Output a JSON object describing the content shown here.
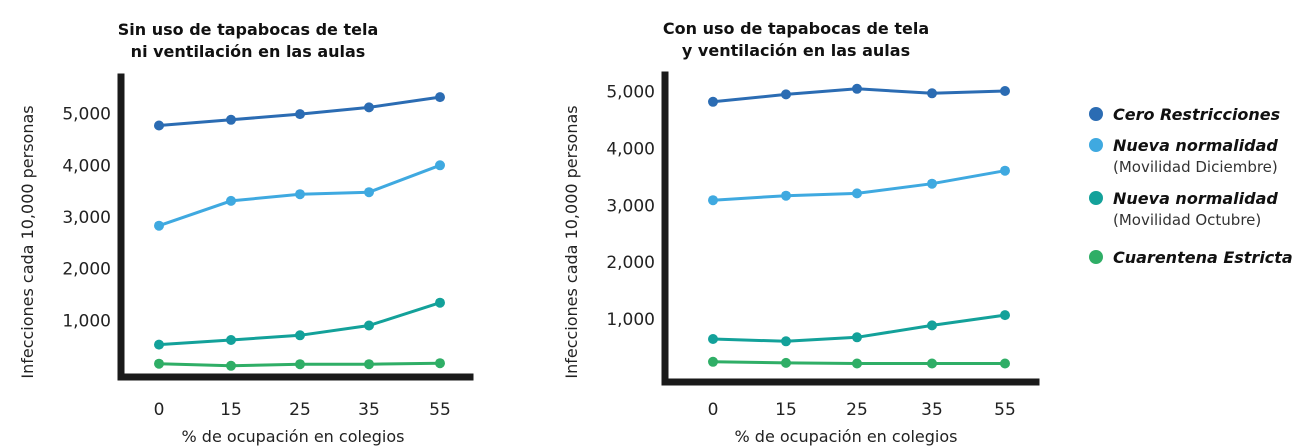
{
  "chart_data": [
    {
      "type": "line",
      "title_lines": [
        "Sin uso de tapabocas de tela",
        "ni ventilación en las aulas"
      ],
      "xlabel": "% de ocupación en colegios",
      "ylabel": "Infecciones cada 10,000 personas",
      "categories": [
        "0",
        "15",
        "25",
        "35",
        "55"
      ],
      "yticks": [
        "1,000",
        "2,000",
        "3,000",
        "4,000",
        "5,000"
      ],
      "ytick_values": [
        1000,
        2000,
        3000,
        4000,
        5000
      ],
      "ylim": [
        0,
        5600
      ],
      "series": [
        {
          "name": "Cero Restricciones",
          "values": [
            4770,
            4880,
            4990,
            5120,
            5320
          ]
        },
        {
          "name": "Nueva normalidad (Movilidad Diciembre)",
          "values": [
            2830,
            3310,
            3440,
            3480,
            4000
          ]
        },
        {
          "name": "Nueva normalidad (Movilidad Octubre)",
          "values": [
            530,
            620,
            710,
            900,
            1340
          ]
        },
        {
          "name": "Cuarentena Estricta",
          "values": [
            160,
            120,
            150,
            150,
            170
          ]
        }
      ]
    },
    {
      "type": "line",
      "title_lines": [
        "Con uso de tapabocas de tela",
        "y ventilación en las aulas"
      ],
      "xlabel": "% de ocupación en colegios",
      "ylabel": "Infecciones cada 10,000 personas",
      "categories": [
        "0",
        "15",
        "25",
        "35",
        "55"
      ],
      "yticks": [
        "1,000",
        "2,000",
        "3,000",
        "4,000",
        "5,000"
      ],
      "ytick_values": [
        1000,
        2000,
        3000,
        4000,
        5000
      ],
      "ylim": [
        0,
        5200
      ],
      "series": [
        {
          "name": "Cero Restricciones",
          "values": [
            4820,
            4950,
            5050,
            4970,
            5010
          ]
        },
        {
          "name": "Nueva normalidad (Movilidad Diciembre)",
          "values": [
            3090,
            3170,
            3210,
            3380,
            3610
          ]
        },
        {
          "name": "Nueva normalidad (Movilidad Octubre)",
          "values": [
            650,
            610,
            680,
            890,
            1070
          ]
        },
        {
          "name": "Cuarentena Estricta",
          "values": [
            250,
            230,
            220,
            220,
            220
          ]
        }
      ]
    }
  ],
  "legend": [
    {
      "label": "Cero Restricciones",
      "sublabel": "",
      "color": "#2b6cb3"
    },
    {
      "label": "Nueva normalidad",
      "sublabel": "(Movilidad Diciembre)",
      "color": "#3fa9e0"
    },
    {
      "label": "Nueva normalidad",
      "sublabel": "(Movilidad Octubre)",
      "color": "#13a19a"
    },
    {
      "label": "Cuarentena Estricta",
      "sublabel": "",
      "color": "#2fae66"
    }
  ],
  "series_colors": [
    "#2b6cb3",
    "#3fa9e0",
    "#13a19a",
    "#2fae66"
  ],
  "axis_color": "#1a1a1a"
}
